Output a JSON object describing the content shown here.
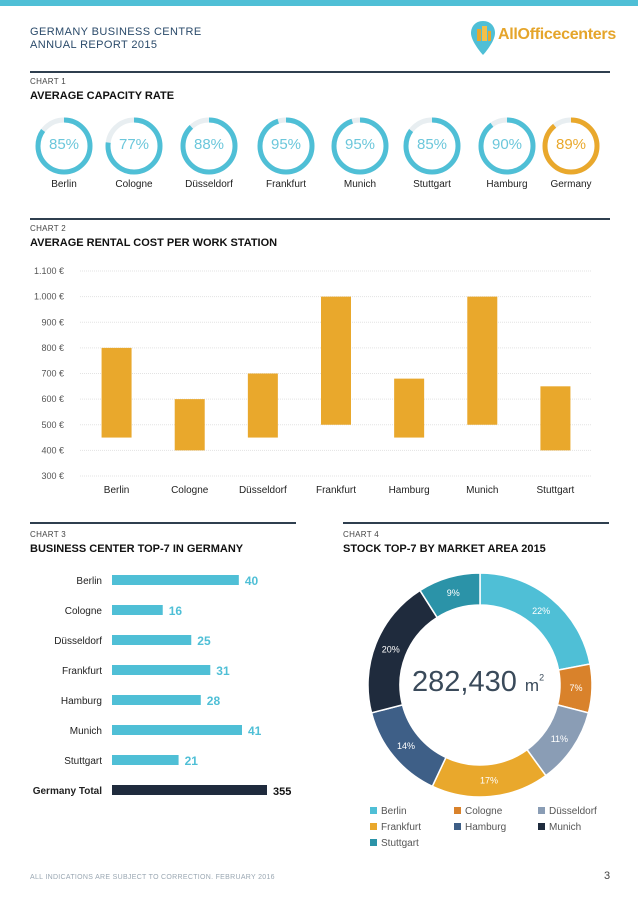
{
  "header": {
    "title_line1": "GERMANY BUSINESS CENTRE",
    "title_line2": "ANNUAL REPORT 2015",
    "logo_text": "AllOfficecenters"
  },
  "colors": {
    "accent_orange": "#e9a82c",
    "accent_blue": "#4fbfd6",
    "dark_navy": "#1f2b3d",
    "ring_track": "#e8eef1"
  },
  "chart1": {
    "label": "CHART 1",
    "title": "AVERAGE CAPACITY RATE",
    "items": [
      {
        "name": "Berlin",
        "value_text": "85%",
        "value": 85,
        "highlight": false
      },
      {
        "name": "Cologne",
        "value_text": "77%",
        "value": 77,
        "highlight": false
      },
      {
        "name": "Düsseldorf",
        "value_text": "88%",
        "value": 88,
        "highlight": false
      },
      {
        "name": "Frankfurt",
        "value_text": "95%",
        "value": 95,
        "highlight": false
      },
      {
        "name": "Munich",
        "value_text": "95%",
        "value": 95,
        "highlight": false
      },
      {
        "name": "Stuttgart",
        "value_text": "85%",
        "value": 85,
        "highlight": false
      },
      {
        "name": "Hamburg",
        "value_text": "90%",
        "value": 90,
        "highlight": false
      },
      {
        "name": "Germany",
        "value_text": "89%",
        "value": 89,
        "highlight": true
      }
    ]
  },
  "chart2": {
    "label": "CHART 2",
    "title": "AVERAGE RENTAL COST PER WORK STATION"
  },
  "chart3": {
    "label": "CHART 3",
    "title": "BUSINESS CENTER TOP-7 IN GERMANY"
  },
  "chart4": {
    "label": "CHART 4",
    "title": "STOCK TOP-7 BY MARKET AREA 2015",
    "center_value": "282,430",
    "center_unit": "m",
    "center_exp": "2"
  },
  "footer": {
    "note": "ALL INDICATIONS ARE SUBJECT TO CORRECTION. FEBRUARY 2016",
    "page": "3"
  },
  "chart_data": [
    {
      "type": "bar",
      "subtype": "floating-range",
      "title": "AVERAGE RENTAL COST PER WORK STATION",
      "categories": [
        "Berlin",
        "Cologne",
        "Düsseldorf",
        "Frankfurt",
        "Hamburg",
        "Munich",
        "Stuttgart"
      ],
      "series": [
        {
          "name": "Low",
          "values": [
            450,
            400,
            450,
            500,
            450,
            500,
            400
          ]
        },
        {
          "name": "High",
          "values": [
            800,
            600,
            700,
            1000,
            680,
            1000,
            650
          ]
        }
      ],
      "ylim": [
        300,
        1100
      ],
      "yticks": [
        300,
        400,
        500,
        600,
        700,
        800,
        900,
        1000,
        1100
      ],
      "ytick_labels": [
        "300 €",
        "400 €",
        "500 €",
        "600 €",
        "700 €",
        "800 €",
        "900 €",
        "1.000 €",
        "1.100 €"
      ],
      "grid": true
    },
    {
      "type": "bar",
      "orientation": "horizontal",
      "title": "BUSINESS CENTER TOP-7 IN GERMANY",
      "categories": [
        "Berlin",
        "Cologne",
        "Düsseldorf",
        "Frankfurt",
        "Hamburg",
        "Munich",
        "Stuttgart",
        "Germany Total"
      ],
      "values": [
        40,
        16,
        25,
        31,
        28,
        41,
        21,
        355
      ],
      "value_labels": [
        "40",
        "16",
        "25",
        "31",
        "28",
        "41",
        "21",
        "355"
      ],
      "bold_categories": [
        "Germany Total"
      ]
    },
    {
      "type": "pie",
      "subtype": "donut",
      "title": "STOCK TOP-7 BY MARKET AREA 2015",
      "categories": [
        "Berlin",
        "Cologne",
        "Düsseldorf",
        "Frankfurt",
        "Hamburg",
        "Munich",
        "Stuttgart"
      ],
      "values": [
        22,
        7,
        11,
        17,
        14,
        20,
        9
      ],
      "value_labels": [
        "22%",
        "7%",
        "11%",
        "17%",
        "14%",
        "20%",
        "9%"
      ],
      "colors": [
        "#4fbfd6",
        "#d9822b",
        "#8a9db5",
        "#e9a82c",
        "#3e5f87",
        "#1f2b3d",
        "#2b93a8"
      ],
      "legend": "bottom"
    }
  ]
}
